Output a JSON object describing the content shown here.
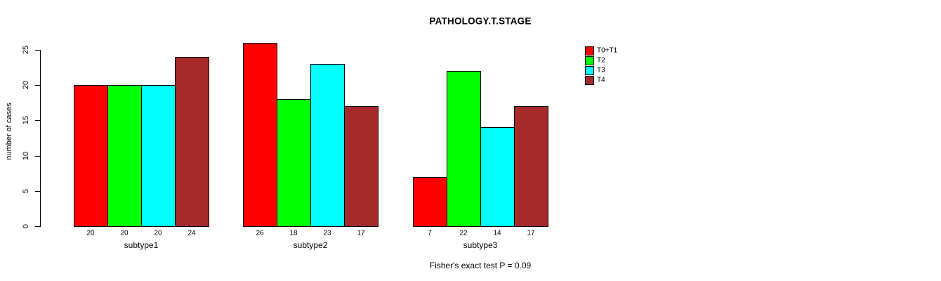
{
  "chart_data": {
    "type": "bar",
    "title": "PATHOLOGY.T.STAGE",
    "ylabel": "number of cases",
    "xlabel": "",
    "categories": [
      "subtype1",
      "subtype2",
      "subtype3"
    ],
    "series": [
      {
        "name": "T0+T1",
        "color": "#FF0000",
        "values": [
          20,
          26,
          7
        ]
      },
      {
        "name": "T2",
        "color": "#00FF00",
        "values": [
          20,
          18,
          22
        ]
      },
      {
        "name": "T3",
        "color": "#00FFFF",
        "values": [
          20,
          23,
          14
        ]
      },
      {
        "name": "T4",
        "color": "#A52A2A",
        "values": [
          24,
          17,
          17
        ]
      }
    ],
    "bar_value_labels": [
      [
        "20",
        "20",
        "20",
        "24"
      ],
      [
        "26",
        "18",
        "23",
        "17"
      ],
      [
        "7",
        "22",
        "14",
        "17"
      ]
    ],
    "ylim": [
      0,
      25
    ],
    "yticks": [
      0,
      5,
      10,
      15,
      20,
      25
    ],
    "grid": false,
    "legend_position": "right",
    "annotation": "Fisher's exact test P = 0.09",
    "axis_color": "#000000",
    "bar_border_color": "#000000",
    "background_color": "#ffffff"
  }
}
